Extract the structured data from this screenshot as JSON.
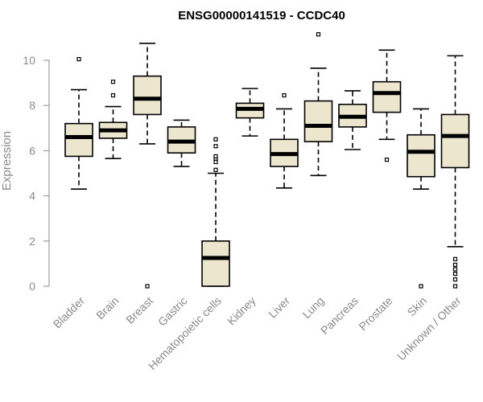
{
  "chart_data": {
    "type": "box",
    "title": "ENSG00000141519 - CCDC40",
    "xlabel": "",
    "ylabel": "Expression",
    "ylim": [
      0,
      11.5
    ],
    "yticks": [
      0,
      2,
      4,
      6,
      8,
      10
    ],
    "colors": {
      "box_fill": "#ede6cf",
      "stroke": "#000000",
      "axis": "#888888",
      "text": "#8a8a8a"
    },
    "categories": [
      "Bladder",
      "Brain",
      "Breast",
      "Gastric",
      "Hematopoietic cells",
      "Kidney",
      "Liver",
      "Lung",
      "Pancreas",
      "Prostate",
      "Skin",
      "Unknown / Other"
    ],
    "boxes": [
      {
        "category": "Bladder",
        "whisker_low": 4.3,
        "q1": 5.75,
        "median": 6.6,
        "q3": 7.2,
        "whisker_high": 8.7,
        "outliers": [
          10.05
        ]
      },
      {
        "category": "Brain",
        "whisker_low": 5.65,
        "q1": 6.55,
        "median": 6.9,
        "q3": 7.25,
        "whisker_high": 7.95,
        "outliers": [
          8.45,
          9.05
        ]
      },
      {
        "category": "Breast",
        "whisker_low": 6.3,
        "q1": 7.6,
        "median": 8.3,
        "q3": 9.3,
        "whisker_high": 10.75,
        "outliers": [
          0.0
        ]
      },
      {
        "category": "Gastric",
        "whisker_low": 5.3,
        "q1": 5.9,
        "median": 6.4,
        "q3": 7.05,
        "whisker_high": 7.35,
        "outliers": []
      },
      {
        "category": "Hematopoietic cells",
        "whisker_low": 0.0,
        "q1": 0.0,
        "median": 1.25,
        "q3": 2.0,
        "whisker_high": 5.0,
        "outliers": [
          5.15,
          5.5,
          5.65,
          5.75,
          6.2,
          6.5
        ]
      },
      {
        "category": "Kidney",
        "whisker_low": 6.65,
        "q1": 7.45,
        "median": 7.85,
        "q3": 8.1,
        "whisker_high": 8.75,
        "outliers": []
      },
      {
        "category": "Liver",
        "whisker_low": 4.35,
        "q1": 5.3,
        "median": 5.85,
        "q3": 6.5,
        "whisker_high": 7.85,
        "outliers": [
          8.45
        ]
      },
      {
        "category": "Lung",
        "whisker_low": 4.9,
        "q1": 6.4,
        "median": 7.1,
        "q3": 8.2,
        "whisker_high": 9.65,
        "outliers": [
          11.15
        ]
      },
      {
        "category": "Pancreas",
        "whisker_low": 6.05,
        "q1": 7.05,
        "median": 7.5,
        "q3": 8.05,
        "whisker_high": 8.65,
        "outliers": []
      },
      {
        "category": "Prostate",
        "whisker_low": 6.5,
        "q1": 7.7,
        "median": 8.55,
        "q3": 9.05,
        "whisker_high": 10.45,
        "outliers": [
          5.6
        ]
      },
      {
        "category": "Skin",
        "whisker_low": 4.3,
        "q1": 4.85,
        "median": 5.95,
        "q3": 6.7,
        "whisker_high": 7.85,
        "outliers": [
          0.0
        ]
      },
      {
        "category": "Unknown / Other",
        "whisker_low": 1.75,
        "q1": 5.25,
        "median": 6.65,
        "q3": 7.6,
        "whisker_high": 10.2,
        "outliers": [
          1.2,
          0.95,
          0.75,
          0.55,
          0.3,
          0.0
        ]
      }
    ]
  }
}
